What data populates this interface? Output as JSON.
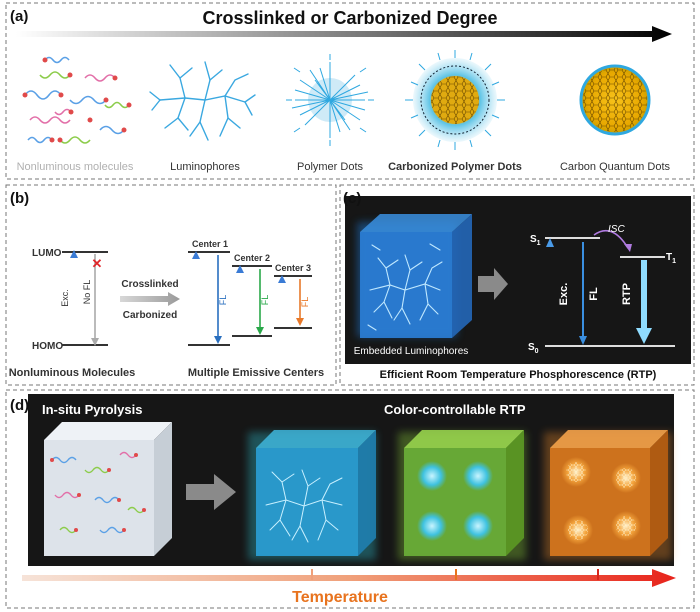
{
  "panel_a": {
    "label": "(a)",
    "title": "Crosslinked or Carbonized Degree",
    "items": [
      "Nonluminous molecules",
      "Luminophores",
      "Polymer Dots",
      "Carbonized Polymer Dots",
      "Carbon Quantum Dots"
    ]
  },
  "panel_b": {
    "label": "(b)",
    "lumo": "LUMO",
    "homo": "HOMO",
    "exc": "Exc.",
    "no_fl": "No FL",
    "fl": "FL",
    "process_line1": "Crosslinked",
    "process_line2": "Carbonized",
    "center1": "Center 1",
    "center2": "Center 2",
    "center3": "Center 3",
    "caption_left": "Nonluminous Molecules",
    "caption_right": "Multiple Emissive Centers"
  },
  "panel_c": {
    "label": "(c)",
    "s1": "S",
    "s1_sub": "1",
    "s0": "S",
    "s0_sub": "0",
    "t1": "T",
    "t1_sub": "1",
    "isc": "ISC",
    "exc": "Exc.",
    "fl": "FL",
    "rtp": "RTP",
    "cube_label": "Embedded Luminophores",
    "caption": "Efficient Room Temperature Phosphorescence (RTP)"
  },
  "panel_d": {
    "label": "(d)",
    "left_title": "In-situ Pyrolysis",
    "right_title": "Color-controllable RTP",
    "axis_label": "Temperature"
  },
  "colors": {
    "dark_bg": "#161616",
    "blue": "#2fa8e0",
    "teal": "#2ec4d6",
    "green": "#8fd33a",
    "orange": "#f08c2a",
    "temperature_text": "#e8731e",
    "arrow_red": "#e8231b"
  }
}
